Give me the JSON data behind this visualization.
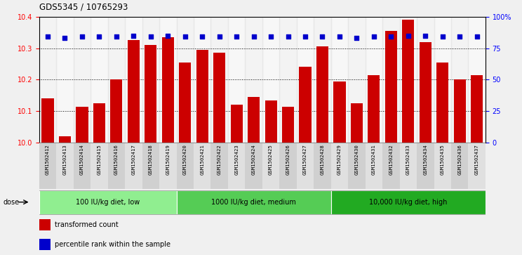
{
  "title": "GDS5345 / 10765293",
  "samples": [
    "GSM1502412",
    "GSM1502413",
    "GSM1502414",
    "GSM1502415",
    "GSM1502416",
    "GSM1502417",
    "GSM1502418",
    "GSM1502419",
    "GSM1502420",
    "GSM1502421",
    "GSM1502422",
    "GSM1502423",
    "GSM1502424",
    "GSM1502425",
    "GSM1502426",
    "GSM1502427",
    "GSM1502428",
    "GSM1502429",
    "GSM1502430",
    "GSM1502431",
    "GSM1502432",
    "GSM1502433",
    "GSM1502434",
    "GSM1502435",
    "GSM1502436",
    "GSM1502437"
  ],
  "bar_values": [
    10.14,
    10.02,
    10.115,
    10.125,
    10.2,
    10.325,
    10.31,
    10.335,
    10.255,
    10.295,
    10.285,
    10.12,
    10.145,
    10.135,
    10.115,
    10.24,
    10.305,
    10.195,
    10.125,
    10.215,
    10.355,
    10.39,
    10.32,
    10.255,
    10.2,
    10.215
  ],
  "percentile_values": [
    84,
    83,
    84,
    84,
    84,
    85,
    84,
    85,
    84,
    84,
    84,
    84,
    84,
    84,
    84,
    84,
    84,
    84,
    83,
    84,
    84,
    85,
    85,
    84,
    84,
    84
  ],
  "ylim_left": [
    10.0,
    10.4
  ],
  "ylim_right": [
    0,
    100
  ],
  "bar_color": "#cc0000",
  "dot_color": "#0000cc",
  "background_color": "#f0f0f0",
  "plot_bg_color": "#ffffff",
  "grid_color": "#000000",
  "col_colors": [
    "#d0d0d0",
    "#e0e0e0"
  ],
  "groups": [
    {
      "label": "100 IU/kg diet, low",
      "start": 0,
      "end": 8,
      "color": "#90ee90"
    },
    {
      "label": "1000 IU/kg diet, medium",
      "start": 8,
      "end": 17,
      "color": "#55cc55"
    },
    {
      "label": "10,000 IU/kg diet, high",
      "start": 17,
      "end": 26,
      "color": "#22aa22"
    }
  ],
  "legend_items": [
    {
      "label": "transformed count",
      "color": "#cc0000"
    },
    {
      "label": "percentile rank within the sample",
      "color": "#0000cc"
    }
  ],
  "dose_label": "dose"
}
